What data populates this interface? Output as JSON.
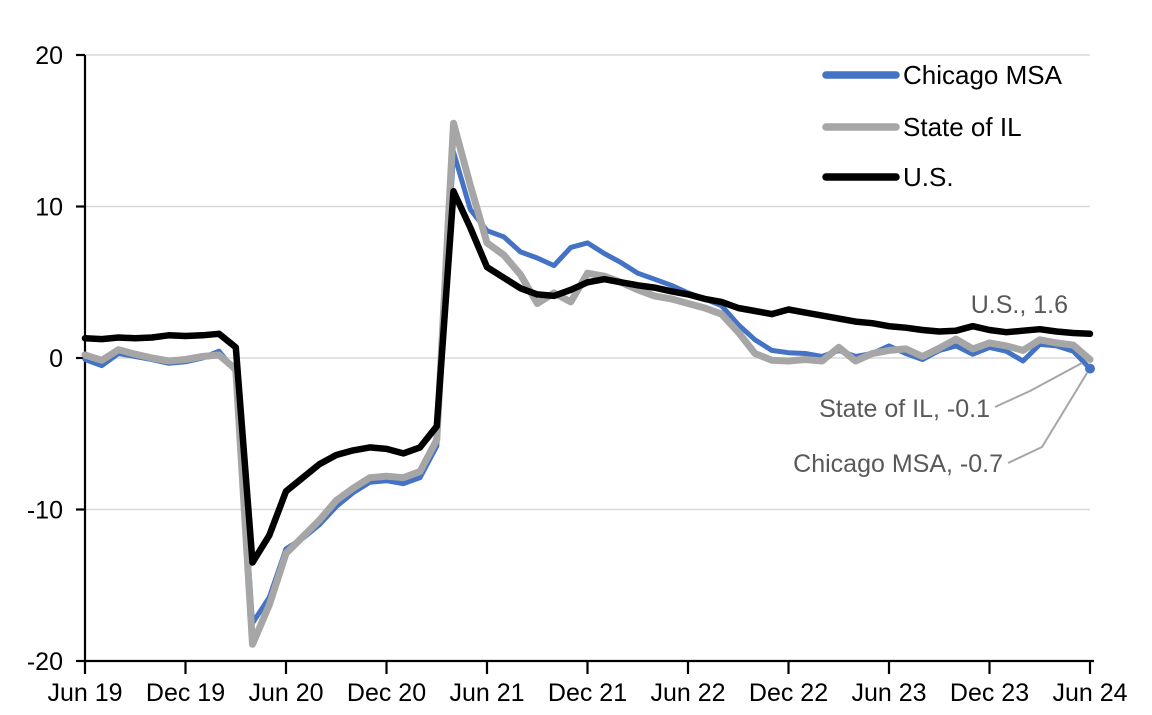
{
  "chart_data": {
    "type": "line",
    "title": "",
    "frequency": "monthly",
    "grid": true,
    "gridline_color": "#D9D9D9",
    "axis_color": "#000000",
    "annotation_text_color": "#595959",
    "leader_line_color": "#A6A6A6",
    "legend_position": "top-right-inside",
    "y_axis": {
      "range": [
        -20,
        20
      ],
      "ticks": [
        20,
        10,
        0,
        -10,
        -20
      ]
    },
    "x_axis": {
      "tick_labels": [
        "Jun 19",
        "Dec 19",
        "Jun 20",
        "Dec 20",
        "Jun 21",
        "Dec 21",
        "Jun 22",
        "Dec 22",
        "Jun 23",
        "Dec 23",
        "Jun 24"
      ]
    },
    "x": [
      "Jun 19",
      "Jul 19",
      "Aug 19",
      "Sep 19",
      "Oct 19",
      "Nov 19",
      "Dec 19",
      "Jan 20",
      "Feb 20",
      "Mar 20",
      "Apr 20",
      "May 20",
      "Jun 20",
      "Jul 20",
      "Aug 20",
      "Sep 20",
      "Oct 20",
      "Nov 20",
      "Dec 20",
      "Jan 21",
      "Feb 21",
      "Mar 21",
      "Apr 21",
      "May 21",
      "Jun 21",
      "Jul 21",
      "Aug 21",
      "Sep 21",
      "Oct 21",
      "Nov 21",
      "Dec 21",
      "Jan 22",
      "Feb 22",
      "Mar 22",
      "Apr 22",
      "May 22",
      "Jun 22",
      "Jul 22",
      "Aug 22",
      "Sep 22",
      "Oct 22",
      "Nov 22",
      "Dec 22",
      "Jan 23",
      "Feb 23",
      "Mar 23",
      "Apr 23",
      "May 23",
      "Jun 23",
      "Jul 23",
      "Aug 23",
      "Sep 23",
      "Oct 23",
      "Nov 23",
      "Dec 23",
      "Jan 24",
      "Feb 24",
      "Mar 24",
      "Apr 24",
      "May 24",
      "Jun 24"
    ],
    "series": [
      {
        "name": "Chicago MSA",
        "color": "#4472C4",
        "values": [
          -0.1,
          -0.5,
          0.3,
          0.1,
          -0.1,
          -0.35,
          -0.25,
          0.0,
          0.45,
          -0.9,
          -17.5,
          -15.8,
          -12.6,
          -11.9,
          -11.0,
          -9.8,
          -8.9,
          -8.2,
          -8.1,
          -8.3,
          -7.9,
          -5.8,
          13.6,
          9.8,
          8.4,
          8.0,
          7.0,
          6.6,
          6.1,
          7.3,
          7.6,
          6.9,
          6.3,
          5.6,
          5.2,
          4.8,
          4.3,
          3.9,
          3.45,
          2.2,
          1.2,
          0.5,
          0.35,
          0.3,
          0.1,
          0.5,
          0.1,
          0.3,
          0.8,
          0.3,
          -0.1,
          0.5,
          0.8,
          0.25,
          0.7,
          0.45,
          -0.2,
          0.9,
          0.8,
          0.45,
          -0.7
        ]
      },
      {
        "name": "State of IL",
        "color": "#A6A6A6",
        "values": [
          0.2,
          -0.15,
          0.55,
          0.25,
          0.0,
          -0.2,
          -0.1,
          0.1,
          0.2,
          -0.75,
          -18.9,
          -16.3,
          -12.9,
          -11.8,
          -10.7,
          -9.4,
          -8.6,
          -7.9,
          -7.8,
          -7.9,
          -7.5,
          -5.4,
          15.5,
          11.4,
          7.6,
          6.8,
          5.5,
          3.6,
          4.3,
          3.7,
          5.6,
          5.4,
          5.0,
          4.5,
          4.1,
          3.9,
          3.6,
          3.3,
          2.9,
          1.7,
          0.3,
          -0.15,
          -0.2,
          -0.1,
          -0.2,
          0.7,
          -0.2,
          0.3,
          0.5,
          0.6,
          0.1,
          0.65,
          1.25,
          0.6,
          1.0,
          0.8,
          0.5,
          1.2,
          1.0,
          0.85,
          -0.1
        ]
      },
      {
        "name": "U.S.",
        "color": "#000000",
        "values": [
          1.3,
          1.25,
          1.35,
          1.3,
          1.35,
          1.5,
          1.45,
          1.5,
          1.6,
          0.7,
          -13.5,
          -11.7,
          -8.8,
          -7.9,
          -7.0,
          -6.4,
          -6.1,
          -5.9,
          -6.0,
          -6.3,
          -5.9,
          -4.5,
          11.0,
          8.6,
          6.0,
          5.3,
          4.6,
          4.2,
          4.1,
          4.5,
          5.0,
          5.2,
          5.0,
          4.8,
          4.65,
          4.4,
          4.2,
          3.9,
          3.7,
          3.3,
          3.1,
          2.9,
          3.2,
          3.0,
          2.8,
          2.6,
          2.4,
          2.3,
          2.1,
          2.0,
          1.85,
          1.75,
          1.8,
          2.1,
          1.85,
          1.7,
          1.8,
          1.9,
          1.75,
          1.65,
          1.6
        ]
      }
    ],
    "annotations": [
      {
        "label": "U.S., 1.6",
        "series": "U.S.",
        "value": 1.6
      },
      {
        "label": "State of IL, -0.1",
        "series": "State of IL",
        "value": -0.1
      },
      {
        "label": "Chicago MSA, -0.7",
        "series": "Chicago MSA",
        "value": -0.7
      }
    ]
  }
}
